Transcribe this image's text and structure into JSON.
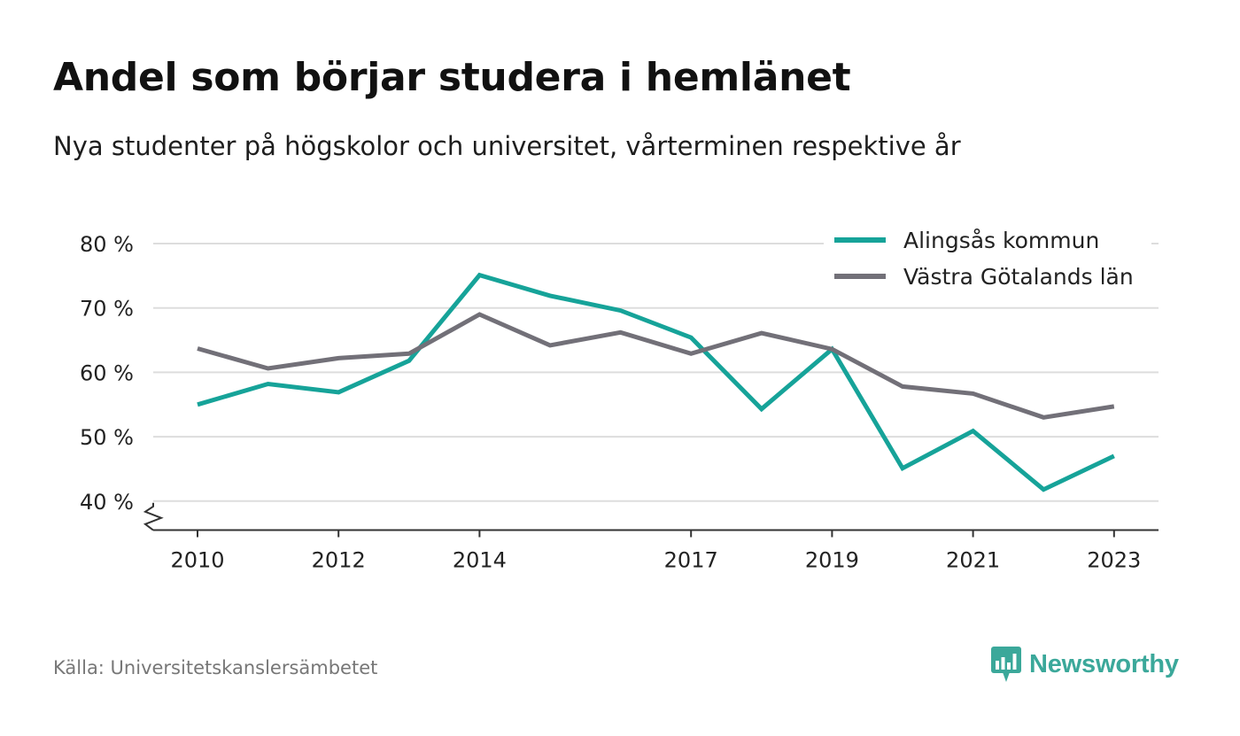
{
  "header": {
    "title": "Andel som börjar studera i hemlänet",
    "subtitle": "Nya studenter på högskolor och universitet, vårterminen respektive år"
  },
  "footer": {
    "source": "Källa: Universitetskanslersämbetet",
    "brand_name": "Newsworthy",
    "brand_icon": "chat-bars-icon"
  },
  "colors": {
    "accent": "#16a399",
    "series_2": "#727078",
    "grid": "#dddddd",
    "axis": "#333333",
    "brand": "#3ba89a"
  },
  "chart_data": {
    "type": "line",
    "x": [
      2010,
      2011,
      2012,
      2013,
      2014,
      2015,
      2016,
      2017,
      2018,
      2019,
      2020,
      2021,
      2022,
      2023
    ],
    "x_tick_labels": [
      "2010",
      "2012",
      "2014",
      "2017",
      "2019",
      "2021",
      "2023"
    ],
    "y_tick_values": [
      40,
      50,
      60,
      70,
      80
    ],
    "y_tick_labels": [
      "40 %",
      "50 %",
      "60 %",
      "70 %",
      "80 %"
    ],
    "ylim": [
      35.5,
      80
    ],
    "y_axis_break": true,
    "grid": true,
    "legend_position": "top-right",
    "series": [
      {
        "name": "Alingsås kommun",
        "color": "#16a399",
        "values": [
          55.0,
          58.2,
          56.9,
          61.8,
          75.1,
          71.9,
          69.6,
          65.4,
          54.3,
          63.6,
          45.1,
          50.9,
          41.8,
          47.0
        ]
      },
      {
        "name": "Västra Götalands län",
        "color": "#727078",
        "values": [
          63.7,
          60.6,
          62.2,
          62.9,
          69.0,
          64.2,
          66.2,
          62.9,
          66.1,
          63.6,
          57.8,
          56.7,
          53.0,
          54.7
        ]
      }
    ]
  }
}
